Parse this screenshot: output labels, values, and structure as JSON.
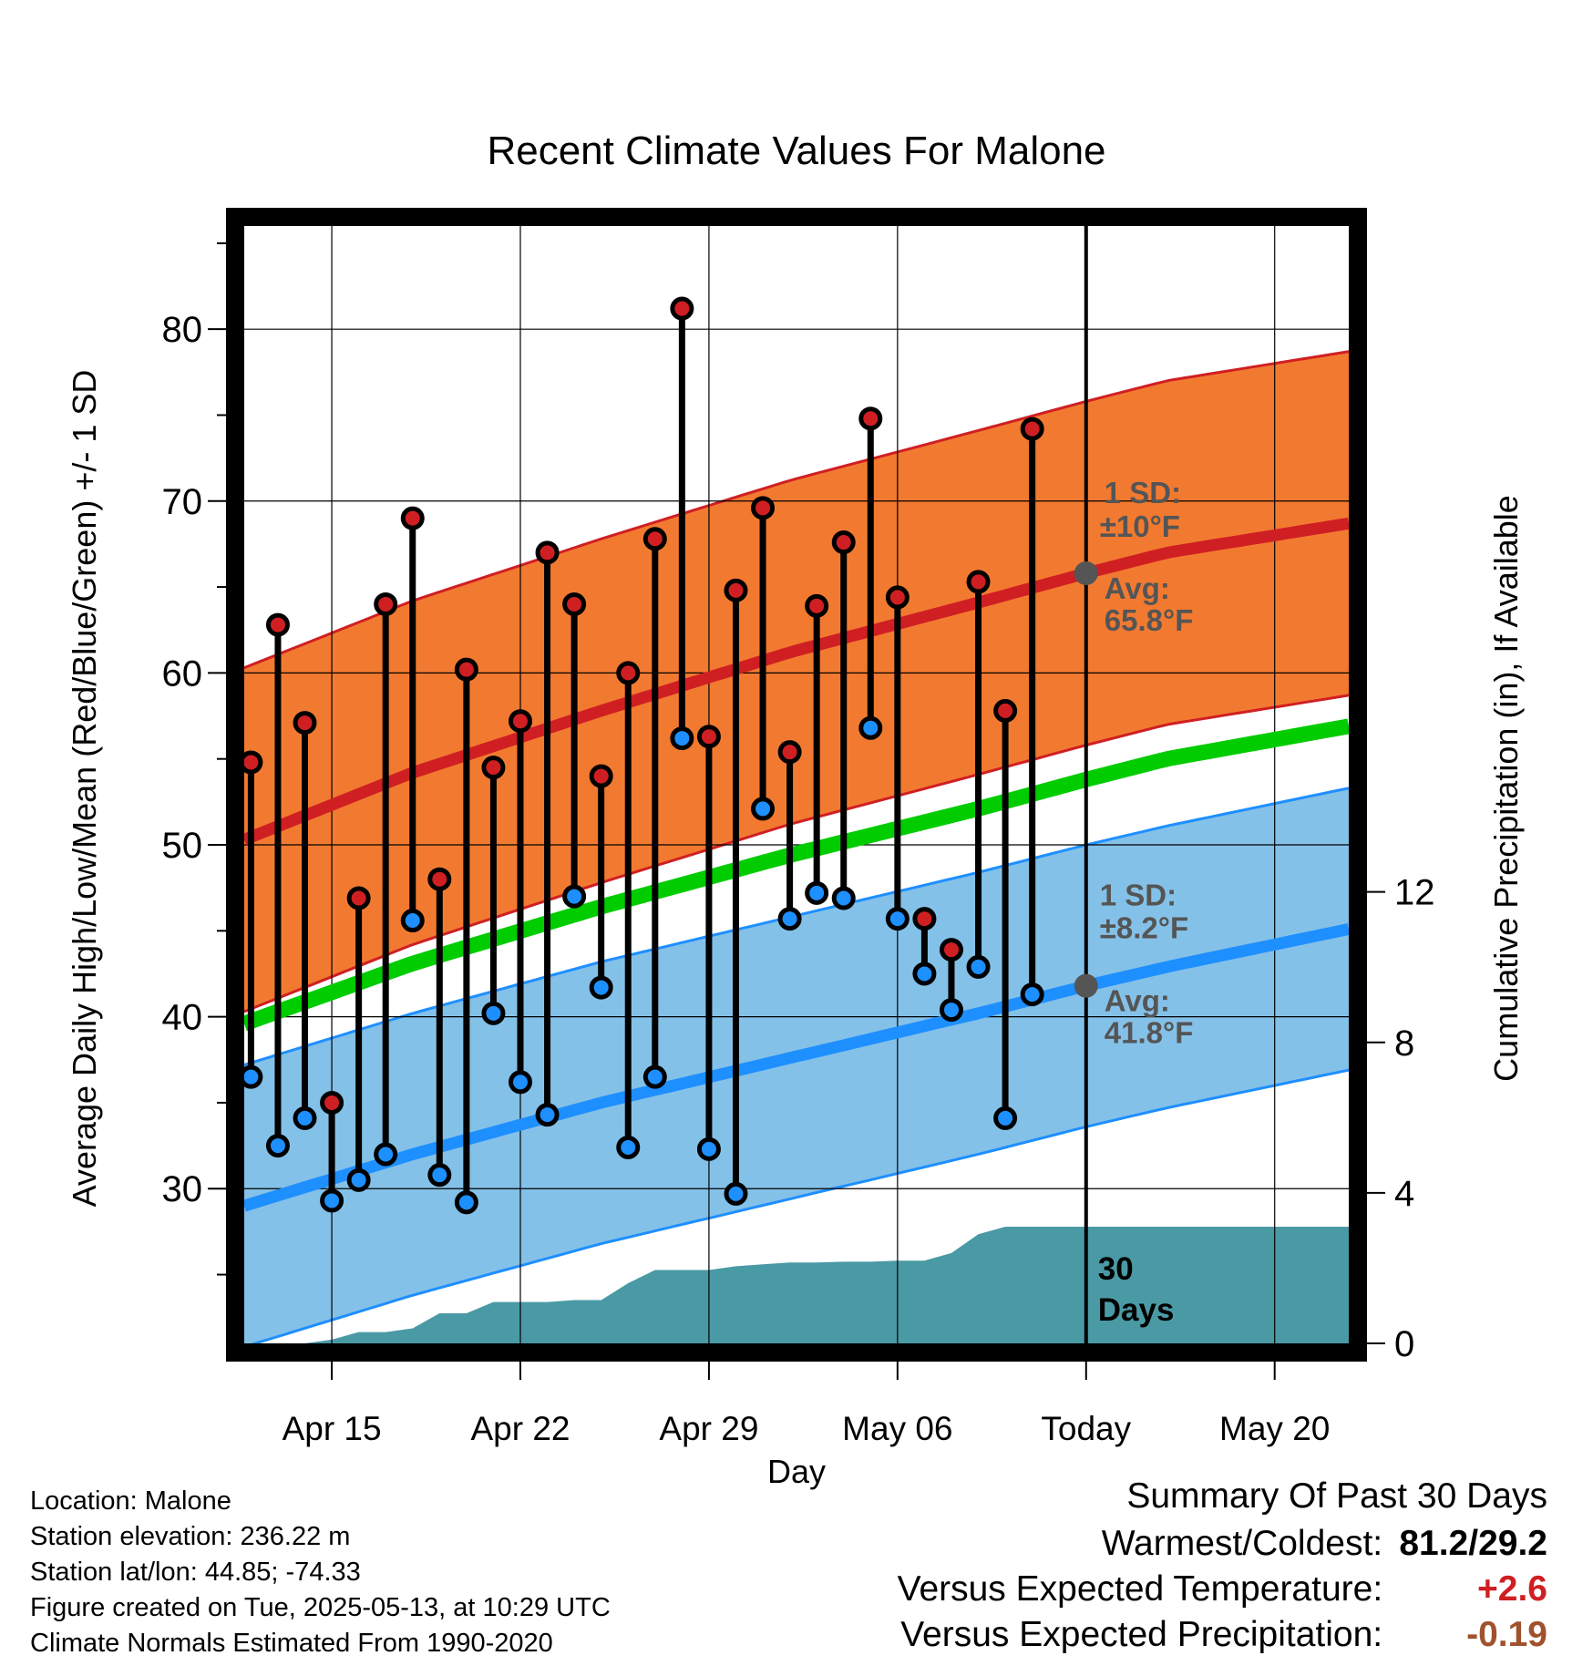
{
  "chart_data": {
    "type": "line",
    "title": "Recent Climate Values For Malone",
    "xlabel": "Day",
    "ylabel_left": "Average Daily High/Low/Mean (Red/Blue/Green) +/- 1 SD",
    "ylabel_right": "Cumulative Precipitation (in), If Available",
    "x_tick_labels": [
      "Apr 15",
      "Apr 22",
      "Apr 29",
      "May 06",
      "Today",
      "May 20"
    ],
    "x_tick_dates": [
      "2025-04-15",
      "2025-04-22",
      "2025-04-29",
      "2025-05-06",
      "2025-05-13",
      "2025-05-20"
    ],
    "xlim": [
      "2025-04-11T18:00",
      "2025-05-22T18:00"
    ],
    "today": "2025-05-13",
    "y_left_ticks": [
      30,
      40,
      50,
      60,
      70,
      80
    ],
    "ylim_left": [
      21,
      86
    ],
    "y_right_ticks": [
      0,
      4,
      8,
      12
    ],
    "ylim_right": [
      0,
      29.7
    ],
    "grid": true,
    "dates": [
      "2025-04-12",
      "2025-04-13",
      "2025-04-14",
      "2025-04-15",
      "2025-04-16",
      "2025-04-17",
      "2025-04-18",
      "2025-04-19",
      "2025-04-20",
      "2025-04-21",
      "2025-04-22",
      "2025-04-23",
      "2025-04-24",
      "2025-04-25",
      "2025-04-26",
      "2025-04-27",
      "2025-04-28",
      "2025-04-29",
      "2025-04-30",
      "2025-05-01",
      "2025-05-02",
      "2025-05-03",
      "2025-05-04",
      "2025-05-05",
      "2025-05-06",
      "2025-05-07",
      "2025-05-08",
      "2025-05-09",
      "2025-05-10",
      "2025-05-11",
      "2025-05-12"
    ],
    "daily_high": [
      54.8,
      62.8,
      57.1,
      35.0,
      46.9,
      64.0,
      69.0,
      48.0,
      60.2,
      54.5,
      57.2,
      67.0,
      64.0,
      54.0,
      60.0,
      67.8,
      81.2,
      56.3,
      64.8,
      69.6,
      55.4,
      63.9,
      67.6,
      74.8,
      64.4,
      45.7,
      43.9,
      65.3,
      57.8,
      74.2,
      null
    ],
    "daily_low": [
      36.5,
      32.5,
      34.1,
      29.3,
      30.5,
      32.0,
      45.6,
      30.8,
      29.2,
      40.2,
      36.2,
      34.3,
      47.0,
      41.7,
      32.4,
      36.5,
      56.2,
      32.3,
      29.7,
      52.1,
      45.7,
      47.2,
      46.9,
      56.8,
      45.7,
      42.5,
      40.4,
      42.9,
      34.1,
      41.3,
      null
    ],
    "normals": {
      "dates": [
        "2025-04-11T18:00",
        "2025-04-18",
        "2025-04-25",
        "2025-05-02",
        "2025-05-09",
        "2025-05-13",
        "2025-05-16",
        "2025-05-22T18:00"
      ],
      "avg_high": [
        50.3,
        54.2,
        57.8,
        61.2,
        64.1,
        65.8,
        67.0,
        68.7
      ],
      "avg_low": [
        29.0,
        32.0,
        35.0,
        37.6,
        40.2,
        41.8,
        42.9,
        45.1
      ],
      "avg_mean": [
        39.6,
        43.1,
        46.4,
        49.4,
        52.1,
        53.8,
        55.0,
        56.9
      ],
      "high_sd": 10.0,
      "low_sd": 8.2
    },
    "cumulative_precip": {
      "dates": [
        "2025-04-11T18:00",
        "2025-04-14",
        "2025-04-15",
        "2025-04-16",
        "2025-04-17",
        "2025-04-18",
        "2025-04-19",
        "2025-04-20",
        "2025-04-21",
        "2025-04-22",
        "2025-04-23",
        "2025-04-24",
        "2025-04-25",
        "2025-04-26",
        "2025-04-27",
        "2025-04-28",
        "2025-04-29",
        "2025-04-30",
        "2025-05-01",
        "2025-05-02",
        "2025-05-03",
        "2025-05-04",
        "2025-05-05",
        "2025-05-06",
        "2025-05-07",
        "2025-05-08",
        "2025-05-09",
        "2025-05-10",
        "2025-05-11",
        "2025-05-12",
        "2025-05-22T18:00"
      ],
      "values": [
        0,
        0,
        0.1,
        0.3,
        0.3,
        0.4,
        0.8,
        0.8,
        1.1,
        1.1,
        1.1,
        1.15,
        1.15,
        1.6,
        1.95,
        1.95,
        1.95,
        2.05,
        2.1,
        2.15,
        2.15,
        2.17,
        2.17,
        2.2,
        2.2,
        2.4,
        2.9,
        3.1,
        3.1,
        3.1,
        3.1
      ]
    },
    "annotations": {
      "high_sd_label": "1 SD:",
      "high_sd_value": "±10°F",
      "high_avg_label": "Avg:",
      "high_avg_value": "65.8°F",
      "low_sd_label": "1 SD:",
      "low_sd_value": "±8.2°F",
      "low_avg_label": "Avg:",
      "low_avg_value": "41.8°F",
      "window_line1": "30",
      "window_line2": "Days"
    },
    "colors": {
      "high": "#d01f23",
      "high_band": "#f27a30",
      "low": "#1e8fff",
      "low_band": "#84c1e8",
      "mean": "#00cc00",
      "precip": "#4a9aa5",
      "marker_high": "#d01f23",
      "marker_low": "#1e8fff",
      "avg_marker": "#555555",
      "annotation_text": "#555555"
    }
  },
  "footer": {
    "location": "Location: Malone",
    "elevation": "Station elevation: 236.22 m",
    "latlon": "Station lat/lon: 44.85; -74.33",
    "created": "Figure created on Tue, 2025-05-13, at 10:29 UTC",
    "normals": "Climate Normals Estimated From 1990-2020"
  },
  "summary": {
    "title": "Summary Of Past 30 Days",
    "warm_cold_label": "Warmest/Coldest:",
    "warm_cold_value": "81.2/29.2",
    "temp_label": "Versus Expected Temperature:",
    "temp_value": "+2.6",
    "precip_label": "Versus Expected Precipitation:",
    "precip_value": "-0.19"
  }
}
